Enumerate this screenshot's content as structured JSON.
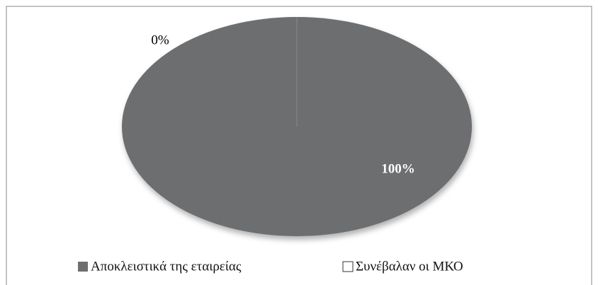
{
  "chart_data": {
    "type": "pie",
    "categories": [
      "Αποκλειστικά της εταιρείας",
      "Συνέβαλαν οι ΜΚΟ"
    ],
    "values": [
      100,
      0
    ],
    "value_labels": [
      "100%",
      "0%"
    ],
    "colors": [
      "#6d6e70",
      "#ffffff"
    ],
    "legend": "bottom"
  }
}
